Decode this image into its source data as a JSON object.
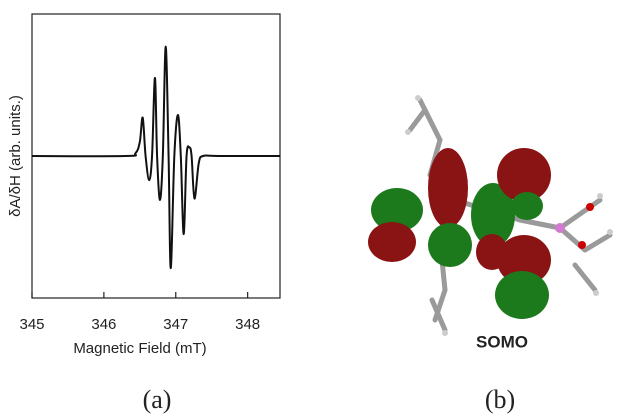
{
  "chart_data": {
    "type": "line",
    "xlabel": "Magnetic Field (mT)",
    "ylabel": "δA/δH (arb. units.)",
    "x": [
      345.0,
      346.3,
      346.44,
      346.5,
      346.54,
      346.58,
      346.63,
      346.67,
      346.71,
      346.74,
      346.78,
      346.82,
      346.86,
      346.9,
      346.93,
      346.98,
      347.03,
      347.07,
      347.11,
      347.15,
      347.19,
      347.22,
      347.26,
      347.32,
      347.38,
      347.6,
      348.45
    ],
    "series": [
      {
        "color": "#111111",
        "values": [
          0,
          0,
          0.02,
          0.1,
          0.27,
          0,
          -0.17,
          0,
          0.55,
          0,
          -0.31,
          0,
          0.77,
          0,
          -0.79,
          0,
          0.29,
          0,
          -0.55,
          0,
          0.06,
          0,
          -0.3,
          -0.05,
          0,
          0,
          0
        ]
      }
    ],
    "xlim": [
      345.0,
      348.45
    ],
    "xticks": [
      345,
      346,
      347,
      348
    ],
    "ylim": [
      -1,
      1
    ]
  },
  "orbital_label": "SOMO",
  "captions": [
    "(a)",
    "(b)"
  ]
}
